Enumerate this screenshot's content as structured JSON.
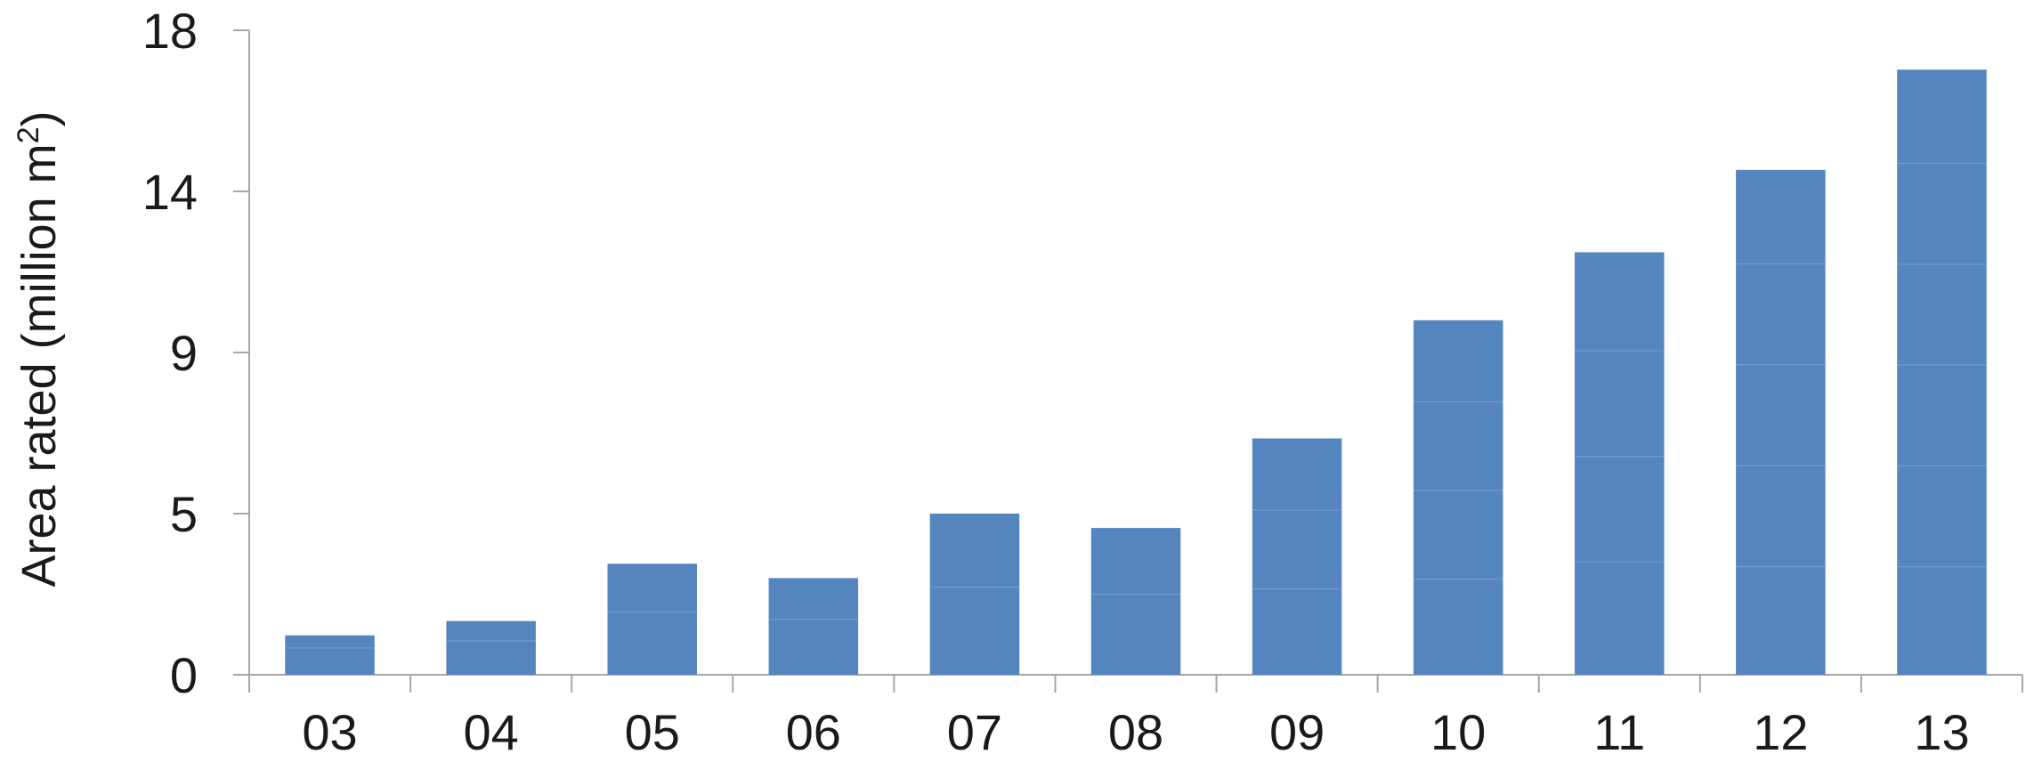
{
  "chart_data": {
    "type": "bar",
    "categories": [
      "03",
      "04",
      "05",
      "06",
      "07",
      "08",
      "09",
      "10",
      "11",
      "12",
      "13"
    ],
    "values": [
      1.1,
      1.5,
      3.1,
      2.7,
      4.5,
      4.1,
      6.6,
      9.9,
      11.8,
      14.1,
      16.9
    ],
    "ylabel": "Area rated (million m",
    "ylabel_sup": "2",
    "ylabel_close": ")",
    "y_ticks": [
      "0",
      "5",
      "9",
      "14",
      "18"
    ],
    "ylim": [
      0,
      18
    ],
    "grid": false,
    "colors": {
      "bar": "#5585BF",
      "bar_stripe": "#7a9fcc",
      "axis": "#a6a6a6",
      "text": "#1a1a1a"
    }
  }
}
